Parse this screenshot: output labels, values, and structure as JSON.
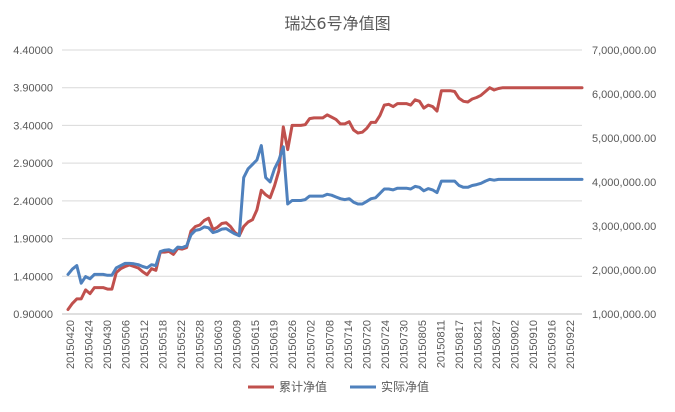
{
  "chart_data": {
    "type": "line",
    "title": "瑞达6号净值图",
    "x_ticks": [
      "20150420",
      "20150424",
      "20150430",
      "20150506",
      "20150512",
      "20150518",
      "20150522",
      "20150528",
      "20150603",
      "20150609",
      "20150615",
      "20150619",
      "20150626",
      "20150702",
      "20150708",
      "20150714",
      "20150720",
      "20150724",
      "20150730",
      "20150805",
      "20150811",
      "20150817",
      "20150821",
      "20150827",
      "20150902",
      "20150910",
      "20150916",
      "20150922"
    ],
    "y_left": {
      "min": 0.9,
      "max": 4.4,
      "ticks": [
        "0.90000",
        "1.40000",
        "1.90000",
        "2.40000",
        "2.90000",
        "3.40000",
        "3.90000",
        "4.40000"
      ]
    },
    "y_right": {
      "min": 1000000,
      "max": 7000000,
      "ticks": [
        "1,000,000.00",
        "2,000,000.00",
        "3,000,000.00",
        "4,000,000.00",
        "5,000,000.00",
        "6,000,000.00",
        "7,000,000.00"
      ]
    },
    "grid": true,
    "legend_position": "bottom",
    "series": [
      {
        "name": "累计净值",
        "axis": "left",
        "color": "#c0504d",
        "values": [
          0.96,
          1.04,
          1.1,
          1.1,
          1.22,
          1.17,
          1.25,
          1.25,
          1.25,
          1.23,
          1.23,
          1.45,
          1.5,
          1.53,
          1.55,
          1.53,
          1.51,
          1.46,
          1.42,
          1.5,
          1.48,
          1.72,
          1.72,
          1.73,
          1.69,
          1.77,
          1.76,
          1.78,
          2.0,
          2.06,
          2.08,
          2.14,
          2.17,
          2.02,
          2.05,
          2.1,
          2.11,
          2.06,
          1.98,
          1.94,
          2.06,
          2.12,
          2.15,
          2.28,
          2.54,
          2.48,
          2.44,
          2.6,
          2.8,
          3.38,
          3.08,
          3.4,
          3.4,
          3.4,
          3.41,
          3.49,
          3.5,
          3.5,
          3.5,
          3.54,
          3.51,
          3.48,
          3.42,
          3.42,
          3.45,
          3.34,
          3.3,
          3.31,
          3.36,
          3.44,
          3.44,
          3.53,
          3.67,
          3.68,
          3.65,
          3.69,
          3.69,
          3.69,
          3.67,
          3.74,
          3.72,
          3.63,
          3.67,
          3.65,
          3.59,
          3.86,
          3.86,
          3.86,
          3.85,
          3.76,
          3.72,
          3.71,
          3.75,
          3.77,
          3.8,
          3.85,
          3.9,
          3.87,
          3.89,
          3.9,
          3.9,
          3.9,
          3.9,
          3.9,
          3.9,
          3.9,
          3.9,
          3.9,
          3.9,
          3.9,
          3.9,
          3.9,
          3.9,
          3.9,
          3.9,
          3.9,
          3.9,
          3.9
        ]
      },
      {
        "name": "实际净值",
        "axis": "right",
        "color": "#4f81bd",
        "values": [
          1.9,
          2.02,
          2.1,
          1.7,
          1.85,
          1.8,
          1.9,
          1.9,
          1.9,
          1.88,
          1.88,
          2.05,
          2.1,
          2.15,
          2.15,
          2.14,
          2.12,
          2.08,
          2.05,
          2.12,
          2.1,
          2.42,
          2.45,
          2.46,
          2.42,
          2.52,
          2.51,
          2.55,
          2.8,
          2.9,
          2.92,
          2.98,
          2.96,
          2.85,
          2.88,
          2.93,
          2.94,
          2.88,
          2.82,
          2.78,
          4.1,
          4.3,
          4.4,
          4.5,
          4.83,
          4.1,
          4.0,
          4.3,
          4.5,
          4.8,
          3.5,
          3.58,
          3.58,
          3.58,
          3.6,
          3.68,
          3.68,
          3.68,
          3.68,
          3.72,
          3.7,
          3.66,
          3.62,
          3.6,
          3.62,
          3.54,
          3.5,
          3.5,
          3.56,
          3.62,
          3.64,
          3.74,
          3.84,
          3.84,
          3.82,
          3.86,
          3.86,
          3.86,
          3.84,
          3.9,
          3.88,
          3.8,
          3.85,
          3.82,
          3.76,
          4.02,
          4.02,
          4.02,
          4.02,
          3.92,
          3.88,
          3.88,
          3.92,
          3.94,
          3.97,
          4.02,
          4.06,
          4.04,
          4.06,
          4.06,
          4.06,
          4.06,
          4.06,
          4.06,
          4.06,
          4.06,
          4.06,
          4.06,
          4.06,
          4.06,
          4.06,
          4.06,
          4.06,
          4.06,
          4.06,
          4.06,
          4.06,
          4.06
        ]
      }
    ]
  }
}
